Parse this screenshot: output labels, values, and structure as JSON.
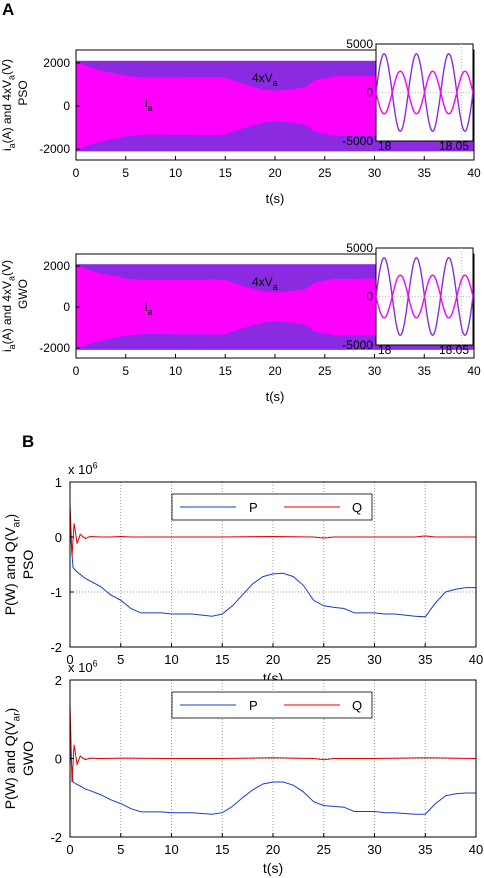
{
  "panel_labels": {
    "a": "A",
    "b": "B"
  },
  "colors": {
    "voltage": "#8a2be2",
    "current": "#ff00ff",
    "P": "#1a3ccc",
    "Q": "#e60000"
  },
  "chart_data": [
    {
      "type": "area",
      "id": "a1",
      "xlabel": "t(s)",
      "ylabel_main": "i",
      "ylabel_sub1": "a",
      "ylabel_mid": "(A) and 4xV",
      "ylabel_sub2": "a",
      "ylabel_end": "(V)",
      "ylabel2": "PSO",
      "xlim": [
        0,
        40
      ],
      "ylim": [
        -2500,
        2600
      ],
      "xticks": [
        0,
        5,
        10,
        15,
        20,
        25,
        30,
        35,
        40
      ],
      "yticks": [
        -2000,
        0,
        2000
      ],
      "voltage_amplitude": 2100,
      "current_envelope": {
        "t": [
          0,
          2,
          5,
          7,
          10,
          12,
          14,
          15,
          17,
          19,
          20,
          21,
          23,
          24,
          26,
          28,
          30,
          32,
          34,
          35,
          37,
          38,
          40
        ],
        "upper": [
          2050,
          1700,
          1400,
          1320,
          1330,
          1340,
          1350,
          1330,
          1000,
          750,
          720,
          740,
          860,
          1200,
          1380,
          1380,
          1390,
          1400,
          1400,
          1420,
          1100,
          950,
          950
        ],
        "lower": [
          -2050,
          -1700,
          -1400,
          -1320,
          -1330,
          -1340,
          -1350,
          -1330,
          -1000,
          -750,
          -720,
          -740,
          -860,
          -1200,
          -1380,
          -1380,
          -1390,
          -1400,
          -1400,
          -1420,
          -1100,
          -950,
          -950
        ]
      },
      "labels": {
        "voltage_main": "4xV",
        "voltage_sub": "a",
        "current_main": "i",
        "current_sub": "a"
      },
      "inset": {
        "xlim": [
          18,
          18.06
        ],
        "ylim": [
          -5000,
          5000
        ],
        "xtick_labels": [
          "18",
          "18.05"
        ],
        "ytick_labels": [
          "5000",
          "0",
          "-5000"
        ],
        "voltage_amplitude": 4000,
        "current_amplitude": 2200,
        "cycles": 3
      }
    },
    {
      "type": "area",
      "id": "a2",
      "xlabel": "t(s)",
      "ylabel_main": "i",
      "ylabel_sub1": "a",
      "ylabel_mid": "(A) and 4xV",
      "ylabel_sub2": "a",
      "ylabel_end": "(V)",
      "ylabel2": "GWO",
      "xlim": [
        0,
        40
      ],
      "ylim": [
        -2500,
        2600
      ],
      "xticks": [
        0,
        5,
        10,
        15,
        20,
        25,
        30,
        35,
        40
      ],
      "yticks": [
        -2000,
        0,
        2000
      ],
      "voltage_amplitude": 2100,
      "current_envelope": {
        "t": [
          0,
          2,
          5,
          7,
          10,
          12,
          14,
          15,
          17,
          19,
          20,
          21,
          23,
          24,
          26,
          28,
          30,
          32,
          34,
          35,
          37,
          38,
          40
        ],
        "upper": [
          2050,
          1700,
          1400,
          1320,
          1330,
          1340,
          1350,
          1330,
          1000,
          750,
          720,
          740,
          860,
          1200,
          1380,
          1380,
          1390,
          1400,
          1400,
          1420,
          1100,
          950,
          950
        ],
        "lower": [
          -2050,
          -1700,
          -1400,
          -1320,
          -1330,
          -1340,
          -1350,
          -1330,
          -1000,
          -750,
          -720,
          -740,
          -860,
          -1200,
          -1380,
          -1380,
          -1390,
          -1400,
          -1400,
          -1420,
          -1100,
          -950,
          -950
        ]
      },
      "labels": {
        "voltage_main": "4xV",
        "voltage_sub": "a",
        "current_main": "i",
        "current_sub": "a"
      },
      "inset": {
        "xlim": [
          18,
          18.06
        ],
        "ylim": [
          -5000,
          5000
        ],
        "xtick_labels": [
          "18",
          "18.05"
        ],
        "ytick_labels": [
          "5000",
          "0",
          "-5000"
        ],
        "voltage_amplitude": 4000,
        "current_amplitude": 2200,
        "cycles": 3
      }
    },
    {
      "type": "line",
      "id": "b1",
      "xlabel": "t(s)",
      "ylabel_main": "P(W) and Q(V",
      "ylabel_sub": "ar",
      "ylabel_end": ")",
      "ylabel2": "PSO",
      "scale_main": "x 10",
      "scale_exp": "6",
      "xlim": [
        0,
        40
      ],
      "ylim": [
        -2,
        1
      ],
      "xticks": [
        0,
        5,
        10,
        15,
        20,
        25,
        30,
        35,
        40
      ],
      "yticks": [
        -2,
        -1,
        0,
        1
      ],
      "legend": [
        "P",
        "Q"
      ],
      "legend_position": "top-center",
      "grid": "x dotted",
      "series": [
        {
          "name": "P",
          "x": [
            0,
            0.3,
            0.6,
            1,
            1.5,
            2,
            3,
            4,
            5,
            6,
            7,
            8,
            9,
            10,
            11,
            12,
            13,
            14,
            15,
            16,
            17,
            18,
            19,
            20,
            21,
            22,
            23,
            24,
            25,
            26,
            27,
            28,
            29,
            30,
            31,
            32,
            33,
            34,
            35,
            36,
            37,
            38,
            39,
            40
          ],
          "y": [
            0.2,
            -0.55,
            -0.62,
            -0.68,
            -0.75,
            -0.8,
            -0.9,
            -1.05,
            -1.15,
            -1.3,
            -1.38,
            -1.38,
            -1.38,
            -1.4,
            -1.4,
            -1.4,
            -1.42,
            -1.44,
            -1.4,
            -1.25,
            -1.05,
            -0.85,
            -0.72,
            -0.67,
            -0.66,
            -0.72,
            -0.88,
            -1.15,
            -1.25,
            -1.28,
            -1.3,
            -1.38,
            -1.38,
            -1.38,
            -1.4,
            -1.4,
            -1.42,
            -1.44,
            -1.45,
            -1.2,
            -1.0,
            -0.95,
            -0.92,
            -0.92
          ]
        },
        {
          "name": "Q",
          "x": [
            0,
            0.2,
            0.4,
            0.7,
            1,
            1.5,
            2,
            3,
            4,
            5,
            6,
            10,
            15,
            20,
            24,
            25,
            26,
            30,
            34,
            35,
            36,
            40
          ],
          "y": [
            0.6,
            -0.35,
            0.25,
            -0.12,
            0.05,
            -0.03,
            0.01,
            0,
            0,
            0.01,
            0,
            0,
            0,
            0.01,
            0,
            -0.02,
            0,
            0,
            0,
            0.02,
            0,
            0
          ]
        }
      ]
    },
    {
      "type": "line",
      "id": "b2",
      "xlabel": "t(s)",
      "ylabel_main": "P(W) and Q(V",
      "ylabel_sub": "ar",
      "ylabel_end": ")",
      "ylabel2": "GWO",
      "scale_main": "x 10",
      "scale_exp": "6",
      "xlim": [
        0,
        40
      ],
      "ylim": [
        -2,
        2
      ],
      "xticks": [
        0,
        5,
        10,
        15,
        20,
        25,
        30,
        35,
        40
      ],
      "yticks": [
        -2,
        0,
        2
      ],
      "legend": [
        "P",
        "Q"
      ],
      "legend_position": "top-center",
      "grid": "x dotted",
      "series": [
        {
          "name": "P",
          "x": [
            0,
            0.3,
            0.6,
            1,
            1.5,
            2,
            3,
            4,
            5,
            6,
            7,
            8,
            9,
            10,
            11,
            12,
            13,
            14,
            15,
            16,
            17,
            18,
            19,
            20,
            21,
            22,
            23,
            24,
            25,
            26,
            27,
            28,
            29,
            30,
            31,
            32,
            33,
            34,
            35,
            36,
            37,
            38,
            39,
            40
          ],
          "y": [
            0.3,
            -0.6,
            -0.65,
            -0.7,
            -0.78,
            -0.82,
            -0.92,
            -1.05,
            -1.15,
            -1.28,
            -1.36,
            -1.36,
            -1.36,
            -1.38,
            -1.38,
            -1.38,
            -1.4,
            -1.42,
            -1.38,
            -1.22,
            -1.0,
            -0.8,
            -0.65,
            -0.6,
            -0.6,
            -0.68,
            -0.85,
            -1.1,
            -1.2,
            -1.22,
            -1.24,
            -1.35,
            -1.35,
            -1.35,
            -1.38,
            -1.38,
            -1.4,
            -1.42,
            -1.42,
            -1.15,
            -0.95,
            -0.9,
            -0.88,
            -0.88
          ]
        },
        {
          "name": "Q",
          "x": [
            0,
            0.2,
            0.4,
            0.7,
            1,
            1.5,
            2,
            3,
            5,
            10,
            15,
            20,
            24,
            25,
            26,
            30,
            35,
            40
          ],
          "y": [
            1.4,
            -0.6,
            0.35,
            -0.15,
            0.06,
            -0.03,
            0.01,
            0,
            0.01,
            0,
            0,
            0.02,
            0,
            -0.03,
            0,
            0,
            0.02,
            0
          ]
        }
      ]
    }
  ]
}
